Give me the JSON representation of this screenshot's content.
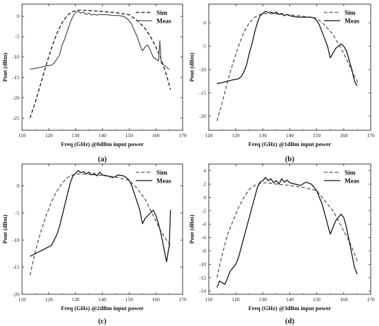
{
  "chart_data": [
    {
      "type": "line",
      "panel_label": "(a)",
      "xlabel": "Freq (GHz) @0dBm input power",
      "ylabel": "Pout (dBm)",
      "xlim": [
        110,
        170
      ],
      "ylim": [
        -28,
        3
      ],
      "xticks": [
        110,
        120,
        130,
        140,
        150,
        160,
        170
      ],
      "yticks": [
        0,
        -5,
        -10,
        -15,
        -20,
        -25
      ],
      "legend_position": "top-right",
      "series": [
        {
          "name": "Sim",
          "style": "dashed",
          "color": "#111111",
          "x": [
            113,
            115,
            117,
            119,
            121,
            123,
            125,
            127,
            129,
            131,
            135,
            140,
            145,
            150,
            153,
            156,
            158,
            160,
            162,
            164,
            165.5
          ],
          "y": [
            -25,
            -21,
            -16.5,
            -12,
            -7.8,
            -4.2,
            -1.5,
            0.3,
            1.2,
            1.5,
            1.4,
            1.2,
            0.9,
            0.4,
            -1,
            -3,
            -5,
            -7.5,
            -10.5,
            -14.5,
            -18
          ]
        },
        {
          "name": "Meas",
          "style": "solid",
          "color": "#555555",
          "x": [
            113,
            115,
            117,
            119,
            121,
            122,
            123,
            124,
            125,
            126,
            127,
            128,
            129,
            130,
            131,
            132,
            133,
            134,
            135,
            136,
            137,
            138,
            139,
            140,
            142,
            144,
            146,
            148,
            149,
            150,
            151,
            152,
            153,
            154,
            155,
            156,
            157,
            158,
            159,
            160,
            161,
            161.5,
            162,
            163,
            164,
            165
          ],
          "y": [
            -13,
            -12.8,
            -12.5,
            -12.2,
            -12,
            -11.5,
            -10.5,
            -9.5,
            -7,
            -5.5,
            -3.5,
            -1.5,
            0,
            1,
            1.2,
            0.8,
            1,
            0.5,
            0.8,
            0.3,
            0.5,
            0.3,
            0.5,
            0.4,
            0.4,
            0.2,
            0.2,
            0,
            -0.5,
            -1,
            -2,
            -3.5,
            -5,
            -7,
            -8.5,
            -7.5,
            -7,
            -8.5,
            -10,
            -10.5,
            -11,
            -6,
            -11.5,
            -12,
            -12.5,
            -13
          ]
        }
      ]
    },
    {
      "type": "line",
      "panel_label": "(b)",
      "xlabel": "Freq (GHz) @1dBm input power",
      "ylabel": "Pout (dBm)",
      "xlim": [
        110,
        170
      ],
      "ylim": [
        -23,
        4
      ],
      "xticks": [
        110,
        120,
        130,
        140,
        150,
        160,
        170
      ],
      "yticks": [
        0,
        -5,
        -10,
        -15,
        -20
      ],
      "legend_position": "top-right",
      "series": [
        {
          "name": "Sim",
          "style": "dashed",
          "color": "#555555",
          "x": [
            113,
            115,
            117,
            119,
            121,
            123,
            125,
            127,
            129,
            131,
            135,
            140,
            145,
            150,
            153,
            156,
            158,
            160,
            162,
            164,
            165.5
          ],
          "y": [
            -21,
            -17,
            -12.5,
            -8.5,
            -5,
            -2,
            0,
            1.2,
            1.8,
            2,
            1.9,
            1.7,
            1.4,
            1,
            -0.5,
            -2.5,
            -4.5,
            -6.5,
            -9,
            -11.5,
            -13
          ]
        },
        {
          "name": "Meas",
          "style": "solid",
          "color": "#111111",
          "x": [
            113,
            115,
            117,
            119,
            121,
            122,
            123,
            124,
            125,
            126,
            127,
            128,
            129,
            130,
            131,
            132,
            133,
            134,
            135,
            136,
            137,
            138,
            139,
            140,
            142,
            144,
            146,
            148,
            149,
            150,
            151,
            152,
            153,
            154,
            155,
            156,
            157,
            158,
            159,
            160,
            161,
            162,
            163,
            164,
            165
          ],
          "y": [
            -13,
            -12.8,
            -12.5,
            -12.2,
            -12,
            -11.5,
            -10.5,
            -9,
            -6.5,
            -4.5,
            -2,
            0,
            1.5,
            2,
            2.5,
            2.2,
            2.3,
            2,
            2.3,
            1.8,
            2,
            1.5,
            1.8,
            1.5,
            1.3,
            1.2,
            1.2,
            1.2,
            1,
            0.5,
            -0.5,
            -2,
            -3.5,
            -5,
            -7.5,
            -6.5,
            -5.5,
            -5,
            -4.5,
            -5,
            -6,
            -8,
            -10,
            -12.5,
            -13.5
          ]
        }
      ]
    },
    {
      "type": "line",
      "panel_label": "(c)",
      "xlabel": "Freq (GHz) @2dBm input power",
      "ylabel": "Pout (dBm)",
      "xlim": [
        110,
        170
      ],
      "ylim": [
        -20,
        4
      ],
      "xticks": [
        110,
        120,
        130,
        140,
        150,
        160,
        170
      ],
      "yticks": [
        0,
        -5,
        -10,
        -15,
        -20
      ],
      "legend_position": "top-right",
      "series": [
        {
          "name": "Sim",
          "style": "dashed",
          "color": "#555555",
          "x": [
            113,
            115,
            117,
            119,
            121,
            123,
            125,
            127,
            129,
            131,
            135,
            140,
            145,
            150,
            153,
            156,
            158,
            160,
            162,
            164,
            165.5
          ],
          "y": [
            -16.5,
            -12,
            -8.5,
            -5.5,
            -3,
            -1,
            0.5,
            1.5,
            2,
            2.2,
            2.1,
            1.9,
            1.6,
            1,
            -0.5,
            -2.5,
            -4.5,
            -6.5,
            -8.5,
            -10,
            -11
          ]
        },
        {
          "name": "Meas",
          "style": "solid",
          "color": "#111111",
          "x": [
            113,
            115,
            117,
            119,
            121,
            122,
            123,
            124,
            125,
            126,
            127,
            128,
            129,
            130,
            131,
            132,
            133,
            134,
            135,
            136,
            137,
            138,
            139,
            140,
            142,
            144,
            146,
            148,
            149,
            150,
            151,
            152,
            153,
            154,
            155,
            156,
            157,
            158,
            159,
            160,
            161,
            162,
            163,
            164,
            165,
            165.5
          ],
          "y": [
            -13,
            -12.5,
            -12,
            -11.5,
            -11,
            -10,
            -9,
            -7.5,
            -5.5,
            -3.5,
            -1.5,
            0.5,
            1.8,
            2.3,
            2.8,
            2.4,
            2.6,
            2.2,
            2.5,
            2,
            2.3,
            1.8,
            2.5,
            2,
            1.8,
            1.5,
            2,
            1.8,
            1.5,
            1,
            0,
            -1.5,
            -3,
            -4.5,
            -7,
            -6,
            -5.5,
            -5,
            -4.5,
            -5.5,
            -7,
            -9,
            -11.5,
            -14,
            -11,
            -4.5
          ]
        }
      ]
    },
    {
      "type": "line",
      "panel_label": "(d)",
      "xlabel": "Freq (GHz) @3dBm input power",
      "ylabel": "Pout (dBm)",
      "xlim": [
        110,
        170
      ],
      "ylim": [
        -14.5,
        5
      ],
      "xticks": [
        110,
        120,
        130,
        140,
        150,
        160,
        170
      ],
      "yticks": [
        4,
        2,
        0,
        -2,
        -4,
        -6,
        -8,
        -10,
        -12,
        -14
      ],
      "legend_position": "top-right",
      "series": [
        {
          "name": "Sim",
          "style": "dashed",
          "color": "#555555",
          "x": [
            113,
            115,
            117,
            119,
            121,
            123,
            125,
            127,
            129,
            131,
            135,
            140,
            145,
            150,
            153,
            156,
            158,
            160,
            162,
            164,
            165
          ],
          "y": [
            -12,
            -8.5,
            -5.5,
            -3.5,
            -1.5,
            0,
            1.2,
            1.8,
            2.1,
            2.2,
            2,
            1.8,
            1.5,
            1,
            -0.5,
            -2,
            -3.5,
            -5,
            -6.5,
            -8.5,
            -9.5
          ]
        },
        {
          "name": "Meas",
          "style": "solid",
          "color": "#111111",
          "x": [
            113,
            114,
            115,
            116,
            117,
            118,
            119,
            120,
            121,
            122,
            123,
            124,
            125,
            126,
            127,
            128,
            129,
            130,
            131,
            132,
            133,
            134,
            135,
            136,
            137,
            138,
            139,
            140,
            142,
            144,
            146,
            148,
            149,
            150,
            151,
            152,
            153,
            154,
            155,
            156,
            157,
            158,
            159,
            160,
            161,
            162,
            163,
            164,
            165
          ],
          "y": [
            -13.5,
            -12.5,
            -12.8,
            -13,
            -12,
            -11,
            -10.5,
            -10,
            -9,
            -7.5,
            -6,
            -4.5,
            -3,
            -1.5,
            0,
            1.5,
            2.3,
            2.5,
            3,
            2.5,
            2.8,
            2.2,
            2.5,
            2,
            2.8,
            2.3,
            2.6,
            2.2,
            2,
            1.8,
            2.3,
            2,
            1.5,
            1,
            0,
            -1,
            -2.5,
            -4,
            -5.5,
            -4.5,
            -3.5,
            -3,
            -2.5,
            -3,
            -4.5,
            -6.5,
            -8.5,
            -10.5,
            -11.5
          ]
        }
      ]
    }
  ]
}
